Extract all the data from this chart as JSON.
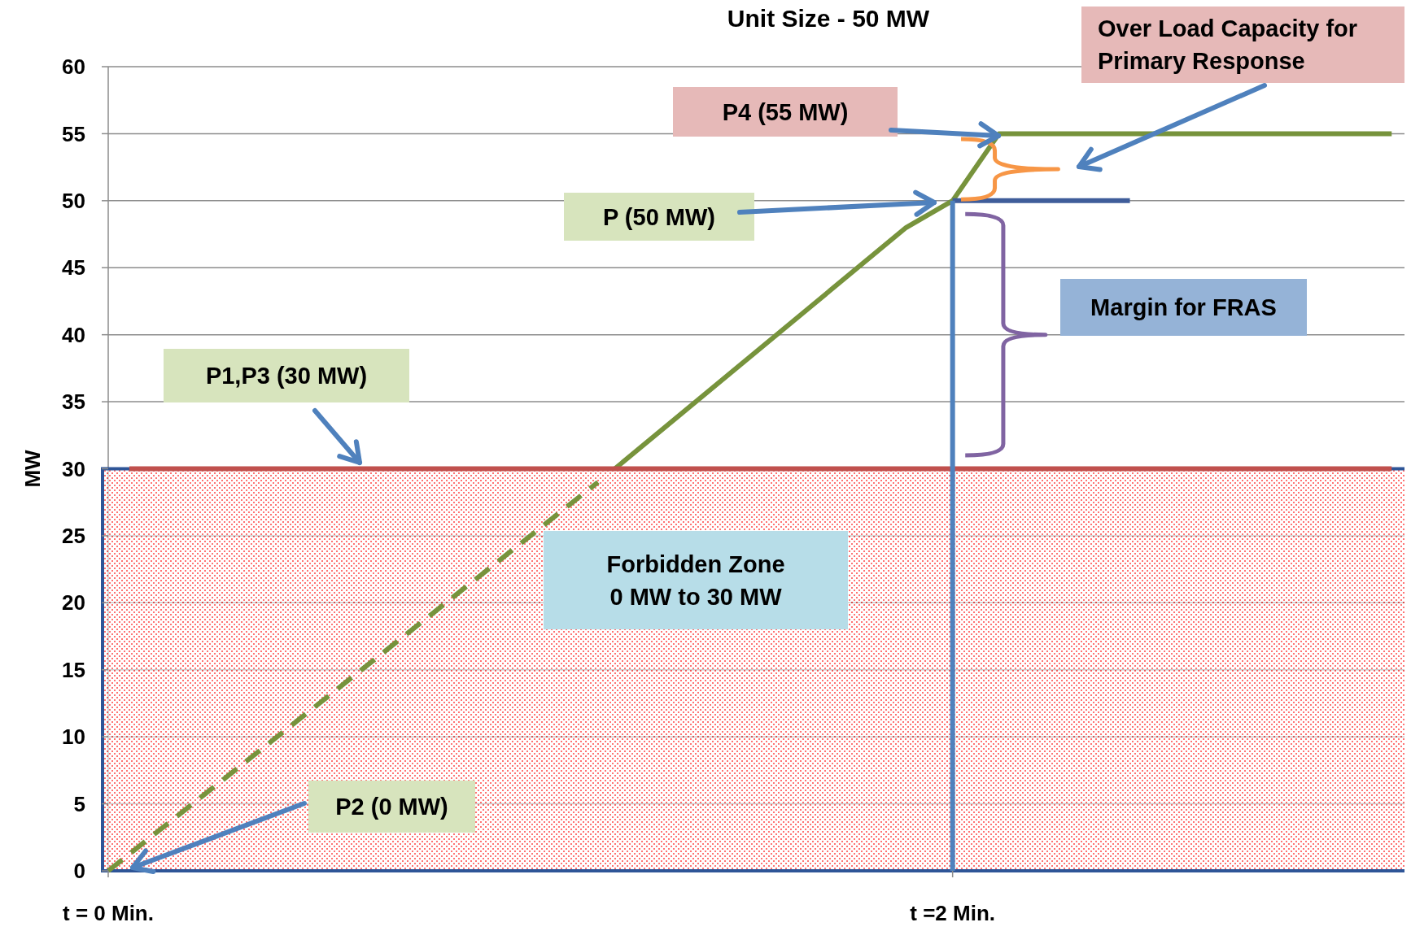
{
  "chart_data": {
    "type": "line",
    "title": "Unit Size - 50 MW",
    "ylabel": "MW",
    "xlim": [
      0,
      3.08
    ],
    "ylim": [
      0,
      60
    ],
    "xticks": [
      {
        "value": 0,
        "label": "t = 0 Min."
      },
      {
        "value": 2,
        "label": "t =2 Min."
      }
    ],
    "yticks": [
      0,
      5,
      10,
      15,
      20,
      25,
      30,
      35,
      40,
      45,
      50,
      55,
      60
    ],
    "grid": "y",
    "series": [
      {
        "x": [
          0,
          1.16
        ],
        "values": [
          0,
          29
        ],
        "color": "#77933c",
        "line_style": "dashed"
      },
      {
        "x": [
          1.2,
          1.66,
          1.89,
          2,
          2.11,
          3.04
        ],
        "values": [
          30,
          42,
          48,
          50,
          55,
          55
        ],
        "color": "#77933c",
        "line_style": "solid"
      },
      {
        "x": [
          0.05,
          3.04
        ],
        "values": [
          30,
          30
        ],
        "color": "#c0504d",
        "line_style": "solid"
      },
      {
        "x": [
          2,
          2.42
        ],
        "values": [
          50,
          50
        ],
        "color": "#3f5d9a",
        "line_style": "solid"
      },
      {
        "x": [
          2,
          2
        ],
        "values": [
          0,
          50
        ],
        "color": "#4f81bd",
        "line_style": "solid"
      }
    ],
    "bands": [
      {
        "axis": "y",
        "from": 0,
        "to": 30,
        "label": "Forbidden Zone 0 MW to 30 MW",
        "color": "#ff0000"
      }
    ],
    "annotations": [
      "P4  (55 MW)",
      "P (50 MW)",
      "P1,P3 (30 MW)",
      "P2 (0 MW)",
      "Over Load Capacity for Primary Response",
      "Margin for FRAS"
    ]
  }
}
